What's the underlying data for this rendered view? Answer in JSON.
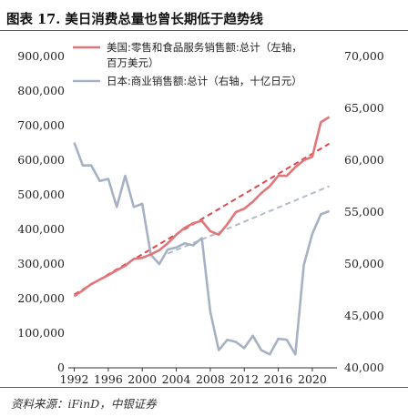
{
  "title": "图表 17. 美日消费总量也曾长期低于趋势线",
  "source": "资料来源：iFinD，中银证券",
  "colors": {
    "us": "#e0767a",
    "us_trend": "#e0474d",
    "jp": "#a7b1c4",
    "jp_trend": "#b2bacb",
    "rule": "#b23b3b"
  },
  "chart_data": {
    "type": "line",
    "title": "",
    "x_ticks": [
      "1992",
      "1996",
      "2000",
      "2004",
      "2008",
      "2012",
      "2016",
      "2020"
    ],
    "xlim": [
      1991.3,
      2022.9
    ],
    "y_left": {
      "ylim": [
        0,
        900000
      ],
      "ticks": [
        "0",
        "100,000",
        "200,000",
        "300,000",
        "400,000",
        "500,000",
        "600,000",
        "700,000",
        "800,000",
        "900,000"
      ]
    },
    "y_right": {
      "ylim": [
        40000,
        70000
      ],
      "ticks": [
        "40,000",
        "45,000",
        "50,000",
        "55,000",
        "60,000",
        "65,000",
        "70,000"
      ]
    },
    "legend": {
      "placement": "top"
    },
    "series": [
      {
        "name": "美国:零售和食品服务销售额:总计（左轴，百万美元）",
        "legend_lines": [
          "美国:零售和食品服务销售额:总计（左轴，",
          "百万美元）"
        ],
        "axis": "left",
        "x": [
          1992,
          1993,
          1994,
          1995,
          1996,
          1997,
          1998,
          1999,
          2000,
          2001,
          2002,
          2003,
          2004,
          2005,
          2006,
          2007,
          2008,
          2009,
          2010,
          2011,
          2012,
          2013,
          2014,
          2015,
          2016,
          2017,
          2018,
          2019,
          2020,
          2021,
          2022
        ],
        "values": [
          207000,
          224000,
          242000,
          255000,
          268000,
          282000,
          295000,
          315000,
          318000,
          328000,
          340000,
          360000,
          385000,
          405000,
          418000,
          425000,
          395000,
          385000,
          415000,
          450000,
          460000,
          480000,
          505000,
          525000,
          555000,
          555000,
          580000,
          600000,
          610000,
          710000,
          725000
        ]
      },
      {
        "name": "日本:商业销售额:总计（右轴，十亿日元）",
        "legend_lines": [
          "日本:商业销售额:总计（右轴，十亿日元）"
        ],
        "axis": "right",
        "x": [
          1992,
          1993,
          1994,
          1995,
          1996,
          1997,
          1998,
          1999,
          2000,
          2001,
          2002,
          2003,
          2004,
          2005,
          2006,
          2007,
          2008,
          2009,
          2010,
          2011,
          2012,
          2013,
          2014,
          2015,
          2016,
          2017,
          2018,
          2019,
          2020,
          2021,
          2022
        ],
        "values": [
          61700,
          59500,
          59500,
          58000,
          58200,
          55500,
          58500,
          55500,
          55800,
          50900,
          50000,
          51400,
          51600,
          52000,
          51800,
          52500,
          45400,
          41700,
          42700,
          42500,
          41900,
          43100,
          41700,
          41300,
          42800,
          42700,
          41300,
          49900,
          52900,
          54800,
          55100
        ]
      }
    ],
    "trendlines": [
      {
        "series": "美国",
        "axis": "left",
        "x": [
          1992,
          2022
        ],
        "values": [
          212000,
          648000
        ]
      },
      {
        "series": "日本",
        "axis": "right",
        "x": [
          2003,
          2022
        ],
        "values": [
          51000,
          57500
        ]
      }
    ]
  }
}
